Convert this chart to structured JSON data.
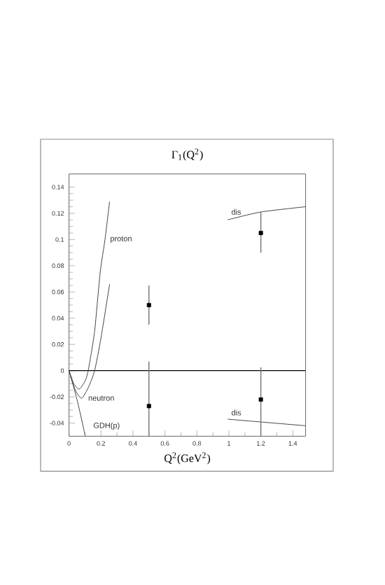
{
  "chart_data": {
    "type": "line",
    "title": "Γ$_{1}$(Q$^{2}$)",
    "xlabel": "Q$^{2}$(GeV$^{2}$)",
    "xlim": [
      0,
      1.48
    ],
    "ylim": [
      -0.05,
      0.15
    ],
    "xticks": [
      0,
      0.2,
      0.4,
      0.6,
      0.8,
      1,
      1.2,
      1.4
    ],
    "yticks": [
      -0.04,
      -0.02,
      0,
      0.02,
      0.04,
      0.06,
      0.08,
      0.1,
      0.12,
      0.14
    ],
    "grid": false,
    "ref_lines": [
      {
        "axis": "y",
        "value": 0,
        "color": "#000000"
      }
    ],
    "series": [
      {
        "name": "proton",
        "color": "#444444",
        "x": [
          0,
          0.03,
          0.064,
          0.1,
          0.12,
          0.16,
          0.195,
          0.225,
          0.254
        ],
        "values": [
          0,
          -0.01,
          -0.014,
          -0.008,
          0,
          0.03,
          0.075,
          0.1,
          0.129
        ]
      },
      {
        "name": "neutron",
        "color": "#444444",
        "x": [
          0,
          0.04,
          0.079,
          0.12,
          0.16,
          0.2,
          0.254
        ],
        "values": [
          0,
          -0.015,
          -0.021,
          -0.013,
          0,
          0.025,
          0.066
        ]
      },
      {
        "name": "GDH(p)",
        "color": "#444444",
        "x": [
          0,
          0.05,
          0.102
        ],
        "values": [
          0,
          -0.022,
          -0.05
        ]
      },
      {
        "name": "dis",
        "color": "#444444",
        "x": [
          0.992,
          1.2,
          1.48
        ],
        "values": [
          0.115,
          0.121,
          0.125
        ]
      },
      {
        "name": "dis",
        "color": "#444444",
        "x": [
          0.992,
          1.48
        ],
        "values": [
          -0.037,
          -0.042
        ]
      },
      {
        "type": "scatter",
        "marker": "square",
        "color": "#000000",
        "x": [
          0.5,
          0.5,
          1.2,
          1.2
        ],
        "values": [
          0.05,
          -0.027,
          0.105,
          -0.022
        ],
        "errors": [
          [
            0.035,
            0.065
          ],
          [
            -0.05,
            0.007
          ],
          [
            0.09,
            0.121
          ],
          [
            -0.05,
            0.0025
          ]
        ]
      }
    ]
  }
}
